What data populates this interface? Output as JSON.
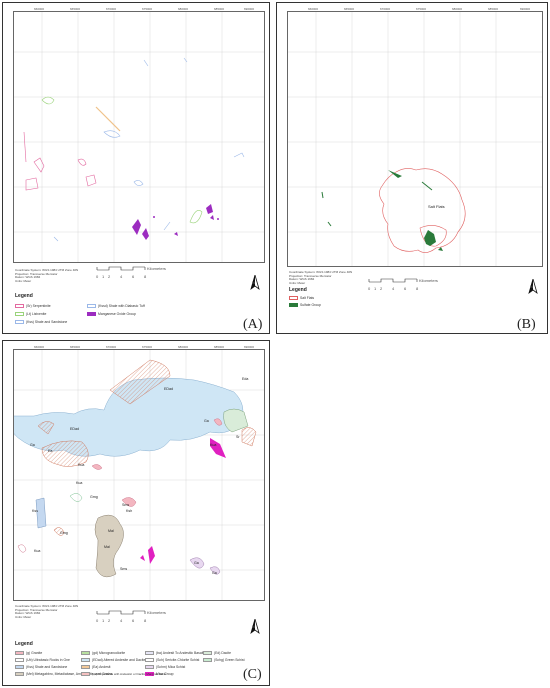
{
  "panels": {
    "a": {
      "label": "(A)",
      "scale_unit": "Kilometers",
      "scale_ticks": [
        "0",
        "1",
        "2",
        "4",
        "6",
        "8"
      ],
      "north": "N",
      "x_ticks": [
        "660000",
        "665000",
        "670000",
        "675000",
        "680000",
        "685000",
        "690000"
      ],
      "y_ticks": [
        "2890000",
        "2885000",
        "2880000",
        "2875000",
        "2870000",
        "2865000",
        "2860000"
      ],
      "crs_lines": [
        "Coordinate System: WGS 1984 UTM Zone 40N",
        "Projection: Transverse Mercator",
        "Datum: WGS 1984",
        "Units: Meter"
      ],
      "legend_title": "Legend",
      "legend": [
        {
          "label": "(Sr) Serpentinite",
          "color": "#e36aa0"
        },
        {
          "label": "(Lt) Listvenite",
          "color": "#9ad37a"
        },
        {
          "label": "(Kss) Shale and Sandstone",
          "color": "#9bb8e8"
        },
        {
          "label": "(Kssd) Shale with Diabasic Tuff",
          "color": "#f0c28a"
        },
        {
          "label": "Manganese Oxide Group",
          "color": "#9c2cc0"
        }
      ]
    },
    "b": {
      "label": "(B)",
      "scale_unit": "Kilometers",
      "scale_ticks": [
        "0",
        "1",
        "2",
        "4",
        "6",
        "8"
      ],
      "north": "N",
      "feature_label": "Salt Flats",
      "x_ticks": [
        "660000",
        "665000",
        "670000",
        "675000",
        "680000",
        "685000",
        "690000"
      ],
      "y_ticks": [
        "2890000",
        "2885000",
        "2880000",
        "2875000",
        "2870000",
        "2865000",
        "2860000"
      ],
      "crs_lines": [
        "Coordinate System: WGS 1984 UTM Zone 40N",
        "Projection: Transverse Mercator",
        "Datum: WGS 1984",
        "Units: Meter"
      ],
      "legend_title": "Legend",
      "legend": [
        {
          "label": "Salt Flats",
          "color": "#e06060"
        },
        {
          "label": "Sulfate Group",
          "color": "#2a7a3a"
        }
      ]
    },
    "c": {
      "label": "(C)",
      "scale_unit": "Kilometers",
      "scale_ticks": [
        "0",
        "1",
        "2",
        "4",
        "6",
        "8"
      ],
      "north": "N",
      "x_ticks": [
        "660000",
        "665000",
        "670000",
        "675000",
        "680000",
        "685000",
        "690000"
      ],
      "y_ticks": [
        "2890000",
        "2885000",
        "2880000",
        "2875000",
        "2870000",
        "2865000",
        "2860000"
      ],
      "crs_lines": [
        "Coordinate System: WGS 1984 UTM Zone 40N",
        "Projection: Transverse Mercator",
        "Datum: WGS 1984",
        "Units: Meter"
      ],
      "map_labels": [
        "EDad",
        "EDad",
        "Eda",
        "Ga",
        "Ga",
        "Ea",
        "Kua",
        "Kua",
        "Sr",
        "Kua",
        "Gmg",
        "Sms",
        "Ksh",
        "Kss",
        "Gmg",
        "Mal",
        "Sms",
        "Ga",
        "Kua",
        "Mal",
        "Ga"
      ],
      "legend_title": "Legend",
      "legend": [
        {
          "label": "(g) Granite",
          "color": "#f3b6c0"
        },
        {
          "label": "(Ub) Ultrabasic Rocks in Gne",
          "color": "#ffffff"
        },
        {
          "label": "(Kss) Shale and Sandstone",
          "color": "#c4d8f0"
        },
        {
          "label": "(Mel) Metagabbro, Metadiabase, Amphibolite, and Gneiss",
          "color": "#d8d0c0"
        },
        {
          "label": "(gd) Microgranodiorite",
          "color": "#b8e0a0"
        },
        {
          "label": "(EDad) Altered Andesite and Dacite",
          "color": "#cfe6f5"
        },
        {
          "label": "(Ea) Andesit",
          "color": "#f2c99a"
        },
        {
          "label": "(ba) Andesit To Andesitic Basalt",
          "color": "#e6e6f6"
        },
        {
          "label": "(Sch) Sericite-Chlorite Schist",
          "color": "#ffffff"
        },
        {
          "label": "(Schm) Mica Schist",
          "color": "#e8d8f0"
        },
        {
          "label": "Mica Group",
          "color": "#e020c0"
        },
        {
          "label": "(da) Rhyodacite with Andesitic or Dacitic Marginal Facie",
          "color": "#f4c0c0"
        },
        {
          "label": "(Ed) Dacite",
          "color": "#d9ecd9"
        },
        {
          "label": "(Schg) Green Schist",
          "color": "#c8ecd0"
        }
      ]
    }
  }
}
